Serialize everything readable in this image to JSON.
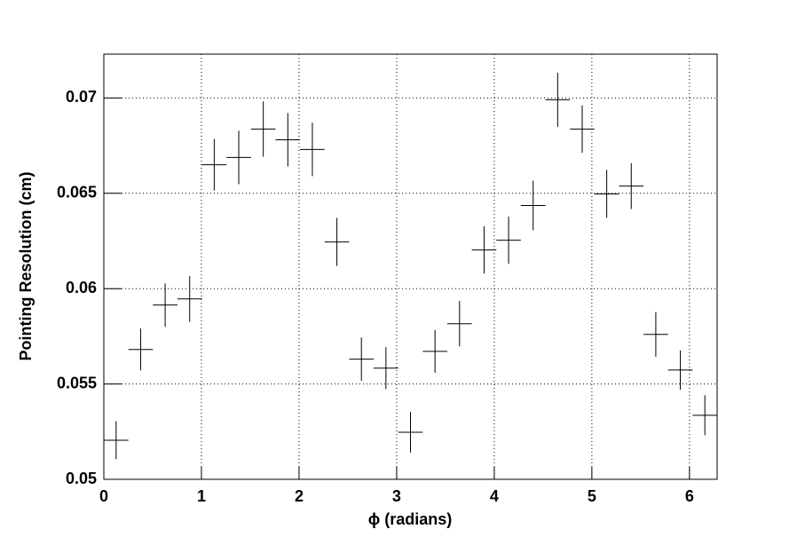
{
  "chart_data": {
    "type": "errorbar",
    "xlabel": "ϕ (radians)",
    "ylabel": "Pointing Resolution (cm)",
    "x": [
      0.1257,
      0.377,
      0.6283,
      0.8796,
      1.131,
      1.3823,
      1.6336,
      1.885,
      2.1363,
      2.3876,
      2.6389,
      2.8903,
      3.1416,
      3.3929,
      3.6442,
      3.8956,
      4.1469,
      4.3982,
      4.6496,
      4.9009,
      5.1522,
      5.4035,
      5.6549,
      5.9062,
      6.1575
    ],
    "xerr": 0.1257,
    "values": [
      0.05205,
      0.05681,
      0.05914,
      0.05946,
      0.0665,
      0.06688,
      0.06837,
      0.06781,
      0.0673,
      0.06245,
      0.0563,
      0.05583,
      0.05247,
      0.05671,
      0.05816,
      0.06203,
      0.06254,
      0.06436,
      0.06991,
      0.06837,
      0.06497,
      0.06538,
      0.0576,
      0.05573,
      0.05336
    ],
    "yerr": [
      0.001,
      0.0011,
      0.00114,
      0.0012,
      0.00135,
      0.0014,
      0.00145,
      0.0014,
      0.0014,
      0.00126,
      0.00114,
      0.0011,
      0.00107,
      0.00112,
      0.00119,
      0.00124,
      0.00124,
      0.0013,
      0.00142,
      0.00124,
      0.00126,
      0.0012,
      0.00117,
      0.00103,
      0.00105
    ],
    "color": "#000000",
    "xlim": [
      0,
      6.2832
    ],
    "ylim": [
      0.05,
      0.0723
    ],
    "xticks": [
      0,
      1,
      2,
      3,
      4,
      5,
      6
    ],
    "yticks": [
      0.05,
      0.055,
      0.06,
      0.065,
      0.07
    ],
    "grid": true
  }
}
